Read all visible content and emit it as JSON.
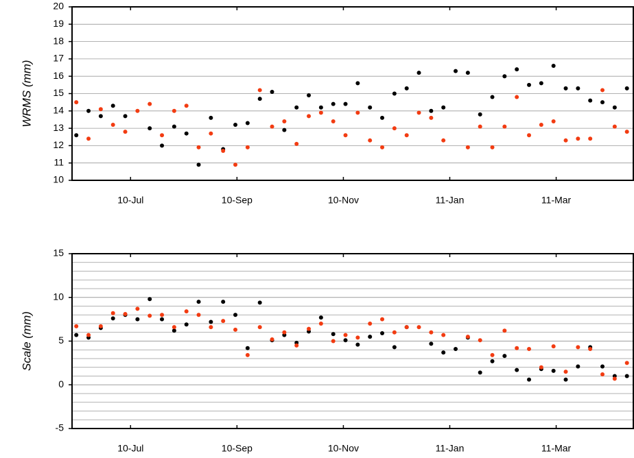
{
  "chart_data": [
    {
      "type": "scatter",
      "ylabel": "WRMS (mm)",
      "x": [
        5.98,
        6.21,
        6.44,
        6.67,
        6.9,
        7.13,
        7.36,
        7.59,
        7.82,
        8.05,
        8.28,
        8.51,
        8.74,
        8.97,
        9.2,
        9.43,
        9.66,
        9.89,
        10.12,
        10.35,
        10.58,
        10.81,
        11.04,
        11.27,
        11.5,
        11.73,
        11.96,
        12.19,
        12.42,
        12.65,
        12.88,
        13.11,
        13.34,
        13.57,
        13.8,
        14.03,
        14.26,
        14.49,
        14.72,
        14.95,
        15.18,
        15.41,
        15.64,
        15.87,
        16.1,
        16.33
      ],
      "series": [
        {
          "color": "#000000",
          "values": [
            12.6,
            14.0,
            13.7,
            14.3,
            13.7,
            null,
            13.0,
            12.0,
            13.1,
            12.7,
            10.9,
            13.6,
            11.8,
            13.2,
            13.3,
            14.7,
            15.1,
            12.9,
            14.2,
            14.9,
            14.2,
            14.4,
            14.4,
            15.6,
            14.2,
            13.6,
            15.0,
            15.3,
            16.2,
            14.0,
            14.2,
            16.3,
            16.2,
            13.8,
            14.8,
            16.0,
            16.4,
            15.5,
            15.6,
            16.6,
            15.3,
            15.3,
            14.6,
            14.5,
            14.2,
            15.3
          ]
        },
        {
          "color": "#f23c12",
          "values": [
            14.5,
            12.4,
            14.1,
            13.2,
            12.8,
            14.0,
            14.4,
            12.6,
            14.0,
            14.3,
            11.9,
            12.7,
            11.7,
            10.9,
            11.9,
            15.2,
            13.1,
            13.4,
            12.1,
            13.7,
            13.9,
            13.4,
            12.6,
            13.9,
            12.3,
            11.9,
            13.0,
            12.6,
            13.9,
            13.6,
            12.3,
            null,
            11.9,
            13.1,
            11.9,
            13.1,
            14.8,
            12.6,
            13.2,
            13.4,
            12.3,
            12.4,
            12.4,
            15.2,
            13.1,
            12.8
          ]
        }
      ],
      "xlim": [
        5.9,
        16.45
      ],
      "xticks": [
        {
          "value": 7,
          "label": "10-Jul"
        },
        {
          "value": 9,
          "label": "10-Sep"
        },
        {
          "value": 11,
          "label": "10-Nov"
        },
        {
          "value": 13,
          "label": "11-Jan"
        },
        {
          "value": 15,
          "label": "11-Mar"
        }
      ],
      "ylim": [
        10,
        20
      ],
      "yticks": [
        10,
        11,
        12,
        13,
        14,
        15,
        16,
        17,
        18,
        19,
        20
      ],
      "grid": true
    },
    {
      "type": "scatter",
      "ylabel": "Scale (mm)",
      "x": [
        5.98,
        6.21,
        6.44,
        6.67,
        6.9,
        7.13,
        7.36,
        7.59,
        7.82,
        8.05,
        8.28,
        8.51,
        8.74,
        8.97,
        9.2,
        9.43,
        9.66,
        9.89,
        10.12,
        10.35,
        10.58,
        10.81,
        11.04,
        11.27,
        11.5,
        11.73,
        11.96,
        12.19,
        12.42,
        12.65,
        12.88,
        13.11,
        13.34,
        13.57,
        13.8,
        14.03,
        14.26,
        14.49,
        14.72,
        14.95,
        15.18,
        15.41,
        15.64,
        15.87,
        16.1,
        16.33
      ],
      "series": [
        {
          "color": "#000000",
          "values": [
            5.7,
            5.4,
            6.5,
            7.6,
            8.0,
            7.5,
            9.8,
            7.5,
            6.2,
            6.9,
            9.5,
            7.2,
            9.5,
            8.0,
            4.2,
            9.4,
            5.1,
            5.7,
            4.8,
            6.1,
            7.7,
            5.8,
            5.1,
            4.6,
            5.5,
            5.9,
            4.3,
            6.6,
            null,
            4.7,
            3.7,
            4.1,
            5.4,
            1.4,
            2.7,
            3.3,
            1.7,
            0.6,
            1.8,
            1.6,
            0.6,
            2.1,
            4.3,
            2.1,
            1.0,
            1.0
          ]
        },
        {
          "color": "#f23c12",
          "values": [
            6.7,
            5.7,
            6.7,
            8.2,
            8.1,
            8.7,
            7.9,
            8.0,
            6.6,
            8.4,
            8.0,
            6.6,
            7.3,
            6.3,
            3.4,
            6.6,
            5.2,
            6.0,
            4.5,
            6.4,
            7.0,
            5.0,
            5.7,
            5.4,
            7.0,
            7.5,
            6.0,
            6.6,
            6.6,
            6.0,
            5.7,
            null,
            5.5,
            5.1,
            3.4,
            6.2,
            4.2,
            4.1,
            2.0,
            4.4,
            1.5,
            4.3,
            4.1,
            1.2,
            0.7,
            2.5
          ]
        }
      ],
      "xlim": [
        5.9,
        16.45
      ],
      "xticks": [
        {
          "value": 7,
          "label": "10-Jul"
        },
        {
          "value": 9,
          "label": "10-Sep"
        },
        {
          "value": 11,
          "label": "10-Nov"
        },
        {
          "value": 13,
          "label": "11-Jan"
        },
        {
          "value": 15,
          "label": "11-Mar"
        }
      ],
      "ylim": [
        -5,
        15
      ],
      "yticks": [
        -5,
        0,
        5,
        10,
        15
      ],
      "grid": true,
      "minor_ygrid": 1
    }
  ]
}
